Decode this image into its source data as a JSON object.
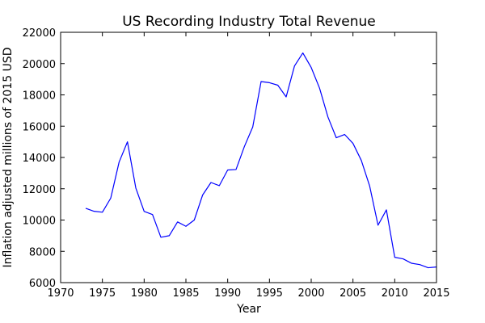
{
  "chart_data": {
    "type": "line",
    "title": "US Recording Industry Total Revenue",
    "xlabel": "Year",
    "ylabel": "Inflation adjusted millions of 2015 USD",
    "xlim": [
      1970,
      2015
    ],
    "ylim": [
      6000,
      22000
    ],
    "xticks": [
      1970,
      1975,
      1980,
      1985,
      1990,
      1995,
      2000,
      2005,
      2010,
      2015
    ],
    "yticks": [
      6000,
      8000,
      10000,
      12000,
      14000,
      16000,
      18000,
      20000,
      22000
    ],
    "grid": false,
    "series": [
      {
        "color": "#0000ff",
        "x": [
          1973,
          1974,
          1975,
          1976,
          1977,
          1978,
          1979,
          1980,
          1981,
          1982,
          1983,
          1984,
          1985,
          1986,
          1987,
          1988,
          1989,
          1990,
          1991,
          1992,
          1993,
          1994,
          1995,
          1996,
          1997,
          1998,
          1999,
          2000,
          2001,
          2002,
          2003,
          2004,
          2005,
          2006,
          2007,
          2008,
          2009,
          2010,
          2011,
          2012,
          2013,
          2014,
          2015
        ],
        "y": [
          10750,
          10560,
          10500,
          11400,
          13700,
          15000,
          12050,
          10550,
          10350,
          8900,
          9000,
          9880,
          9600,
          10000,
          11600,
          12400,
          12200,
          13200,
          13230,
          14700,
          15950,
          18850,
          18780,
          18620,
          17870,
          19850,
          20680,
          19750,
          18430,
          16590,
          15260,
          15470,
          14900,
          13810,
          12170,
          9670,
          10650,
          7620,
          7520,
          7240,
          7150,
          6950,
          7000
        ]
      }
    ]
  }
}
